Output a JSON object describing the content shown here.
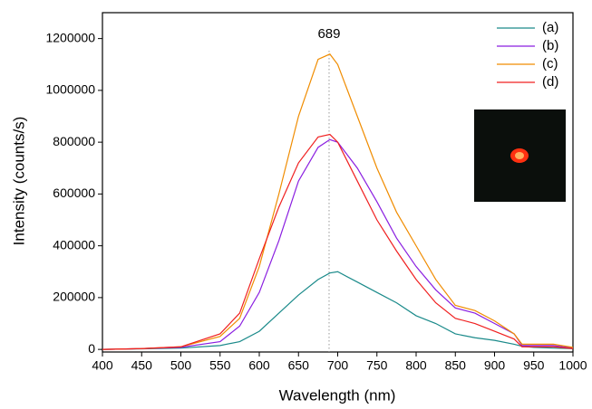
{
  "chart_data": {
    "type": "line",
    "xlabel": "Wavelength (nm)",
    "ylabel": "Intensity (counts/s)",
    "x": [
      400,
      450,
      500,
      550,
      575,
      600,
      625,
      650,
      675,
      690,
      700,
      725,
      750,
      775,
      800,
      825,
      850,
      875,
      900,
      925,
      935,
      950,
      975,
      1000
    ],
    "series": [
      {
        "name": "(a)",
        "color": "#1a8a8a",
        "values": [
          0,
          2000,
          5000,
          15000,
          30000,
          70000,
          140000,
          210000,
          270000,
          295000,
          300000,
          260000,
          220000,
          180000,
          130000,
          100000,
          60000,
          45000,
          35000,
          20000,
          12000,
          8000,
          5000,
          3000
        ]
      },
      {
        "name": "(b)",
        "color": "#8a1ee0",
        "values": [
          0,
          3000,
          8000,
          30000,
          90000,
          220000,
          420000,
          650000,
          780000,
          810000,
          800000,
          700000,
          570000,
          430000,
          320000,
          230000,
          160000,
          140000,
          100000,
          60000,
          15000,
          15000,
          15000,
          5000
        ]
      },
      {
        "name": "(c)",
        "color": "#f08c00",
        "values": [
          0,
          3000,
          10000,
          50000,
          120000,
          320000,
          600000,
          900000,
          1120000,
          1140000,
          1100000,
          900000,
          700000,
          530000,
          400000,
          270000,
          170000,
          150000,
          110000,
          60000,
          20000,
          20000,
          20000,
          8000
        ]
      },
      {
        "name": "(d)",
        "color": "#f02020",
        "values": [
          0,
          3000,
          10000,
          60000,
          140000,
          350000,
          550000,
          720000,
          820000,
          830000,
          800000,
          650000,
          500000,
          380000,
          270000,
          180000,
          120000,
          100000,
          70000,
          40000,
          10000,
          10000,
          10000,
          3000
        ]
      }
    ],
    "xlim": [
      400,
      1000
    ],
    "xticks": [
      400,
      450,
      500,
      550,
      600,
      650,
      700,
      750,
      800,
      850,
      900,
      950,
      1000
    ],
    "ylim": [
      -10000,
      1300000
    ],
    "yticks": [
      0,
      200000,
      400000,
      600000,
      800000,
      1000000,
      1200000
    ],
    "annotation": {
      "label": "689",
      "x": 689
    },
    "legend": "top-right"
  }
}
